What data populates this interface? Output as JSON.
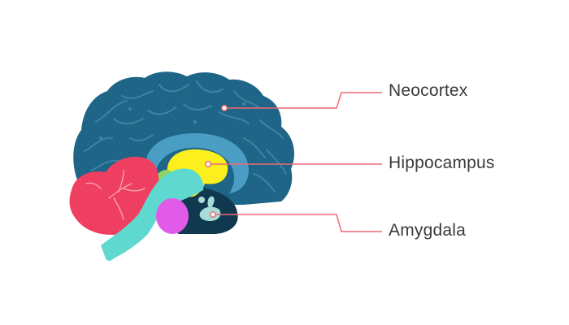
{
  "labels": {
    "neocortex": "Neocortex",
    "hippocampus": "Hippocampus",
    "amygdala": "Amygdala"
  },
  "colors": {
    "neocortex": "#1e6487",
    "neocortex_fold": "#3f87a8",
    "inner_band": "#4a9ec4",
    "hippocampus": "#fbef1e",
    "amygdala": "#a6ddd6",
    "cerebellum": "#ef3d5f",
    "brainstem": "#5fd8d0",
    "thalamus": "#e25ae8",
    "dark_core": "#10384f",
    "green_region": "#8fd45e",
    "leader_line": "#ee6a73"
  }
}
